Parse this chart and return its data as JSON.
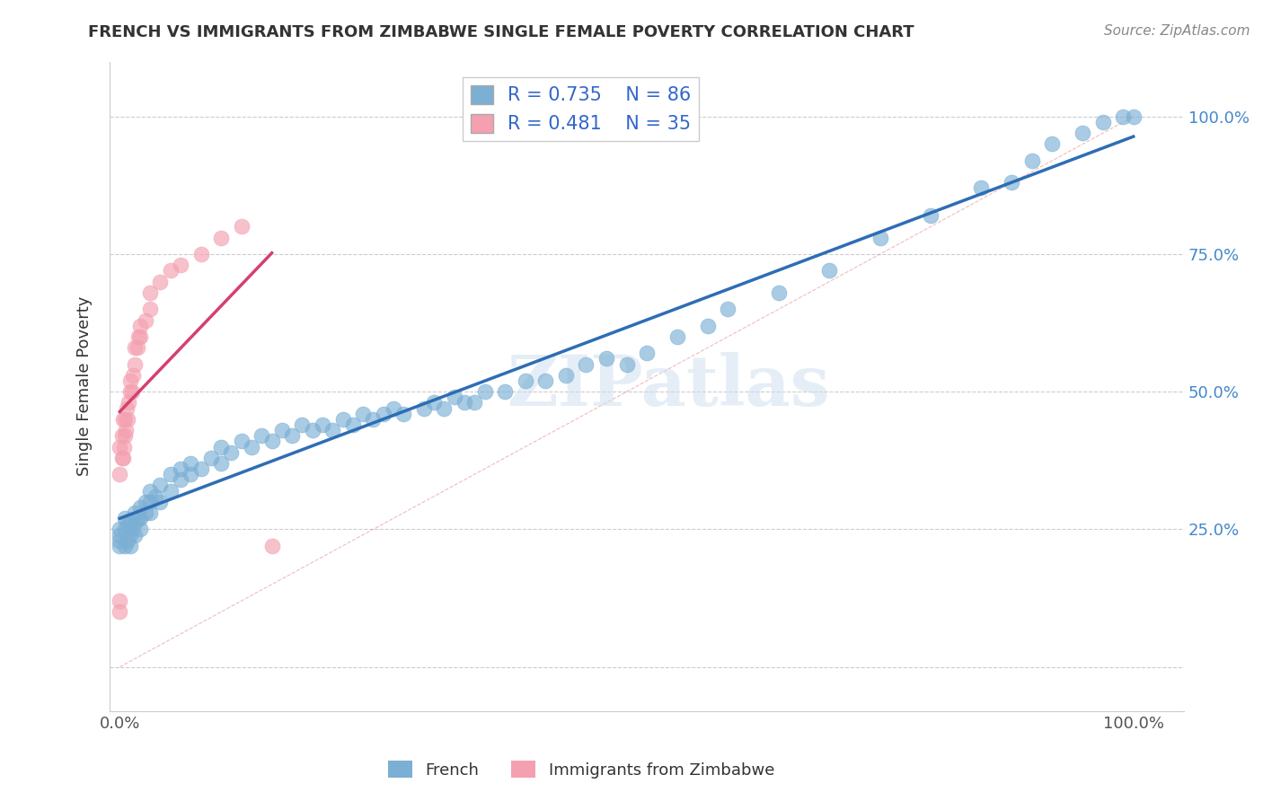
{
  "title": "FRENCH VS IMMIGRANTS FROM ZIMBABWE SINGLE FEMALE POVERTY CORRELATION CHART",
  "source": "Source: ZipAtlas.com",
  "ylabel": "Single Female Poverty",
  "french_R": 0.735,
  "french_N": 86,
  "zimbabwe_R": 0.481,
  "zimbabwe_N": 35,
  "french_color": "#7BAFD4",
  "zimbabwe_color": "#F4A0B0",
  "french_line_color": "#2E6DB4",
  "zimbabwe_line_color": "#D44070",
  "watermark": "ZIPatlas",
  "background_color": "#FFFFFF",
  "grid_color": "#CCCCCC",
  "french_scatter_x": [
    0.0,
    0.0,
    0.0,
    0.0,
    0.005,
    0.005,
    0.005,
    0.008,
    0.008,
    0.01,
    0.01,
    0.01,
    0.012,
    0.015,
    0.015,
    0.015,
    0.018,
    0.02,
    0.02,
    0.02,
    0.025,
    0.025,
    0.03,
    0.03,
    0.03,
    0.035,
    0.04,
    0.04,
    0.05,
    0.05,
    0.06,
    0.06,
    0.07,
    0.07,
    0.08,
    0.09,
    0.1,
    0.1,
    0.11,
    0.12,
    0.13,
    0.14,
    0.15,
    0.16,
    0.17,
    0.18,
    0.19,
    0.2,
    0.21,
    0.22,
    0.23,
    0.24,
    0.25,
    0.26,
    0.27,
    0.28,
    0.3,
    0.31,
    0.32,
    0.33,
    0.34,
    0.35,
    0.36,
    0.38,
    0.4,
    0.42,
    0.44,
    0.46,
    0.48,
    0.5,
    0.52,
    0.55,
    0.58,
    0.6,
    0.65,
    0.7,
    0.75,
    0.8,
    0.85,
    0.88,
    0.9,
    0.92,
    0.95,
    0.97,
    0.99,
    1.0
  ],
  "french_scatter_y": [
    0.22,
    0.23,
    0.24,
    0.25,
    0.22,
    0.25,
    0.27,
    0.23,
    0.26,
    0.22,
    0.24,
    0.26,
    0.25,
    0.24,
    0.26,
    0.28,
    0.27,
    0.25,
    0.27,
    0.29,
    0.28,
    0.3,
    0.28,
    0.3,
    0.32,
    0.31,
    0.3,
    0.33,
    0.32,
    0.35,
    0.34,
    0.36,
    0.35,
    0.37,
    0.36,
    0.38,
    0.37,
    0.4,
    0.39,
    0.41,
    0.4,
    0.42,
    0.41,
    0.43,
    0.42,
    0.44,
    0.43,
    0.44,
    0.43,
    0.45,
    0.44,
    0.46,
    0.45,
    0.46,
    0.47,
    0.46,
    0.47,
    0.48,
    0.47,
    0.49,
    0.48,
    0.48,
    0.5,
    0.5,
    0.52,
    0.52,
    0.53,
    0.55,
    0.56,
    0.55,
    0.57,
    0.6,
    0.62,
    0.65,
    0.68,
    0.72,
    0.78,
    0.82,
    0.87,
    0.88,
    0.92,
    0.95,
    0.97,
    0.99,
    1.0,
    1.0
  ],
  "zimbabwe_scatter_x": [
    0.0,
    0.0,
    0.0,
    0.0,
    0.002,
    0.002,
    0.003,
    0.003,
    0.004,
    0.005,
    0.005,
    0.006,
    0.007,
    0.008,
    0.009,
    0.01,
    0.01,
    0.012,
    0.013,
    0.015,
    0.015,
    0.017,
    0.018,
    0.02,
    0.02,
    0.025,
    0.03,
    0.03,
    0.04,
    0.05,
    0.06,
    0.08,
    0.1,
    0.12,
    0.15
  ],
  "zimbabwe_scatter_y": [
    0.1,
    0.12,
    0.35,
    0.4,
    0.38,
    0.42,
    0.45,
    0.38,
    0.4,
    0.42,
    0.45,
    0.43,
    0.47,
    0.45,
    0.48,
    0.5,
    0.52,
    0.5,
    0.53,
    0.55,
    0.58,
    0.58,
    0.6,
    0.6,
    0.62,
    0.63,
    0.65,
    0.68,
    0.7,
    0.72,
    0.73,
    0.75,
    0.78,
    0.8,
    0.22
  ]
}
